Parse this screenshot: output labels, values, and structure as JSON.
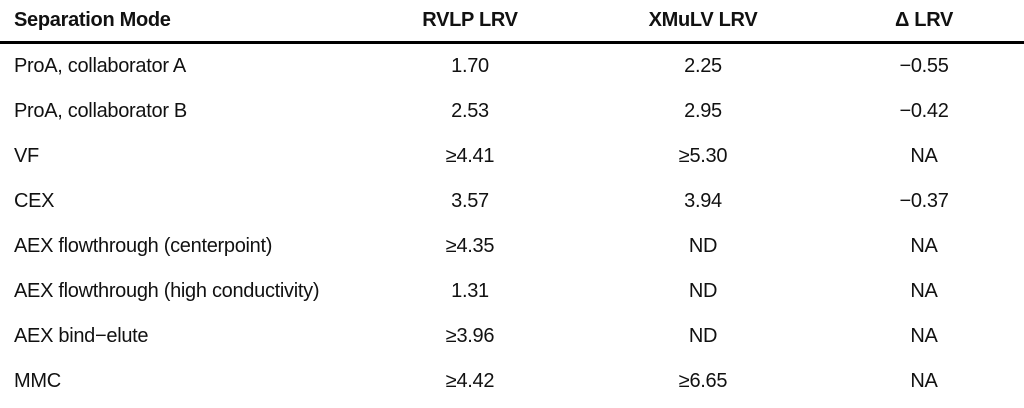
{
  "table": {
    "columns": [
      "Separation Mode",
      "RVLP LRV",
      "XMuLV LRV",
      "Δ LRV"
    ],
    "rows": [
      [
        "ProA, collaborator A",
        "1.70",
        "2.25",
        "−0.55"
      ],
      [
        "ProA, collaborator B",
        "2.53",
        "2.95",
        "−0.42"
      ],
      [
        "VF",
        "≥4.41",
        "≥5.30",
        "NA"
      ],
      [
        "CEX",
        "3.57",
        "3.94",
        "−0.37"
      ],
      [
        "AEX flowthrough (centerpoint)",
        "≥4.35",
        "ND",
        "NA"
      ],
      [
        "AEX flowthrough (high conductivity)",
        "1.31",
        "ND",
        "NA"
      ],
      [
        "AEX bind−elute",
        "≥3.96",
        "ND",
        "NA"
      ],
      [
        "MMC",
        "≥4.42",
        "≥6.65",
        "NA"
      ]
    ]
  },
  "colors": {
    "text": "#111111",
    "rule": "#000000",
    "background": "#ffffff"
  }
}
